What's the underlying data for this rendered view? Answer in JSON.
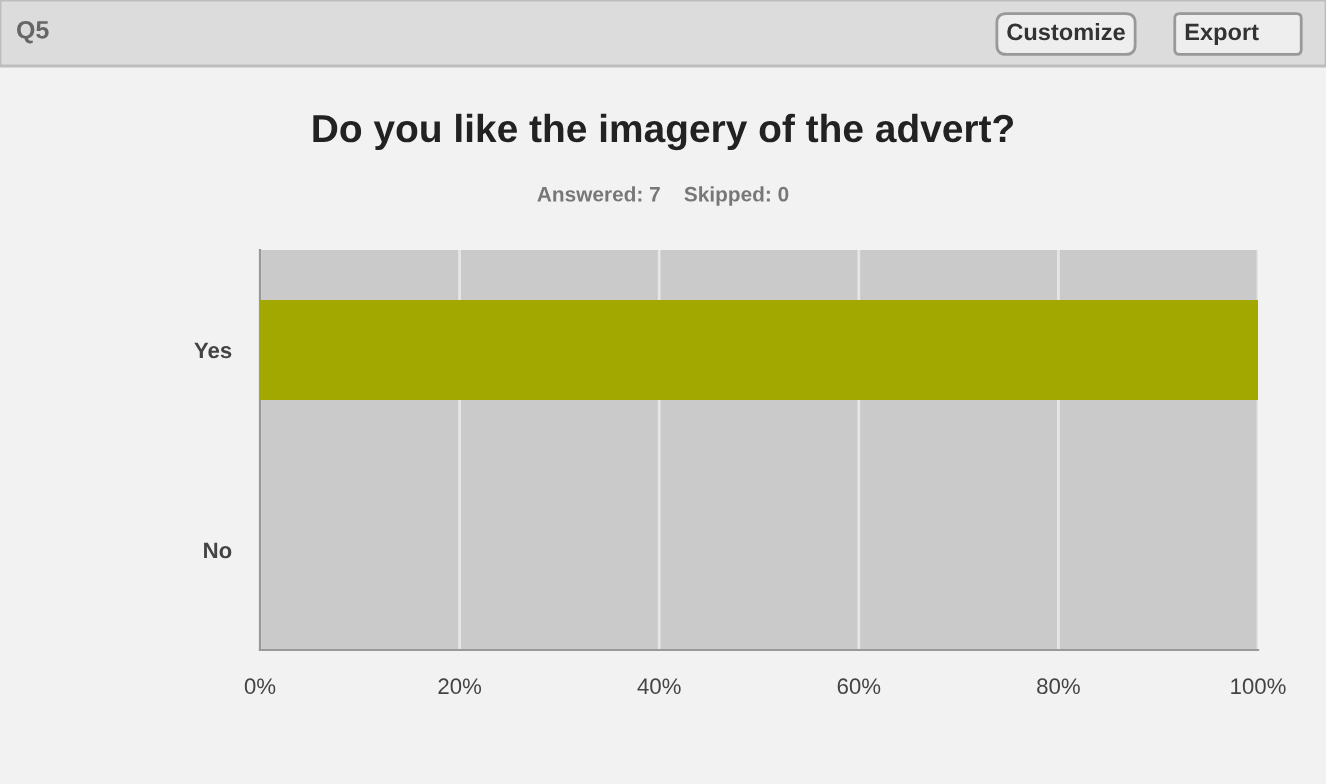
{
  "chart_data": {
    "type": "bar",
    "orientation": "horizontal",
    "title": "Do you like the imagery of the advert?",
    "subtitle": "Answered: 7    Skipped: 0",
    "categories": [
      "Yes",
      "No"
    ],
    "values": [
      100,
      0
    ],
    "color": "#a3a800",
    "xlim": [
      0,
      100
    ],
    "xticks": [
      {
        "value": 0,
        "label": "0%"
      },
      {
        "value": 20,
        "label": "20%"
      },
      {
        "value": 40,
        "label": "40%"
      },
      {
        "value": 60,
        "label": "60%"
      },
      {
        "value": 80,
        "label": "80%"
      },
      {
        "value": 100,
        "label": "100%"
      }
    ],
    "grid": "x",
    "annotations": [
      "Q5",
      "Customize",
      "Export"
    ]
  }
}
